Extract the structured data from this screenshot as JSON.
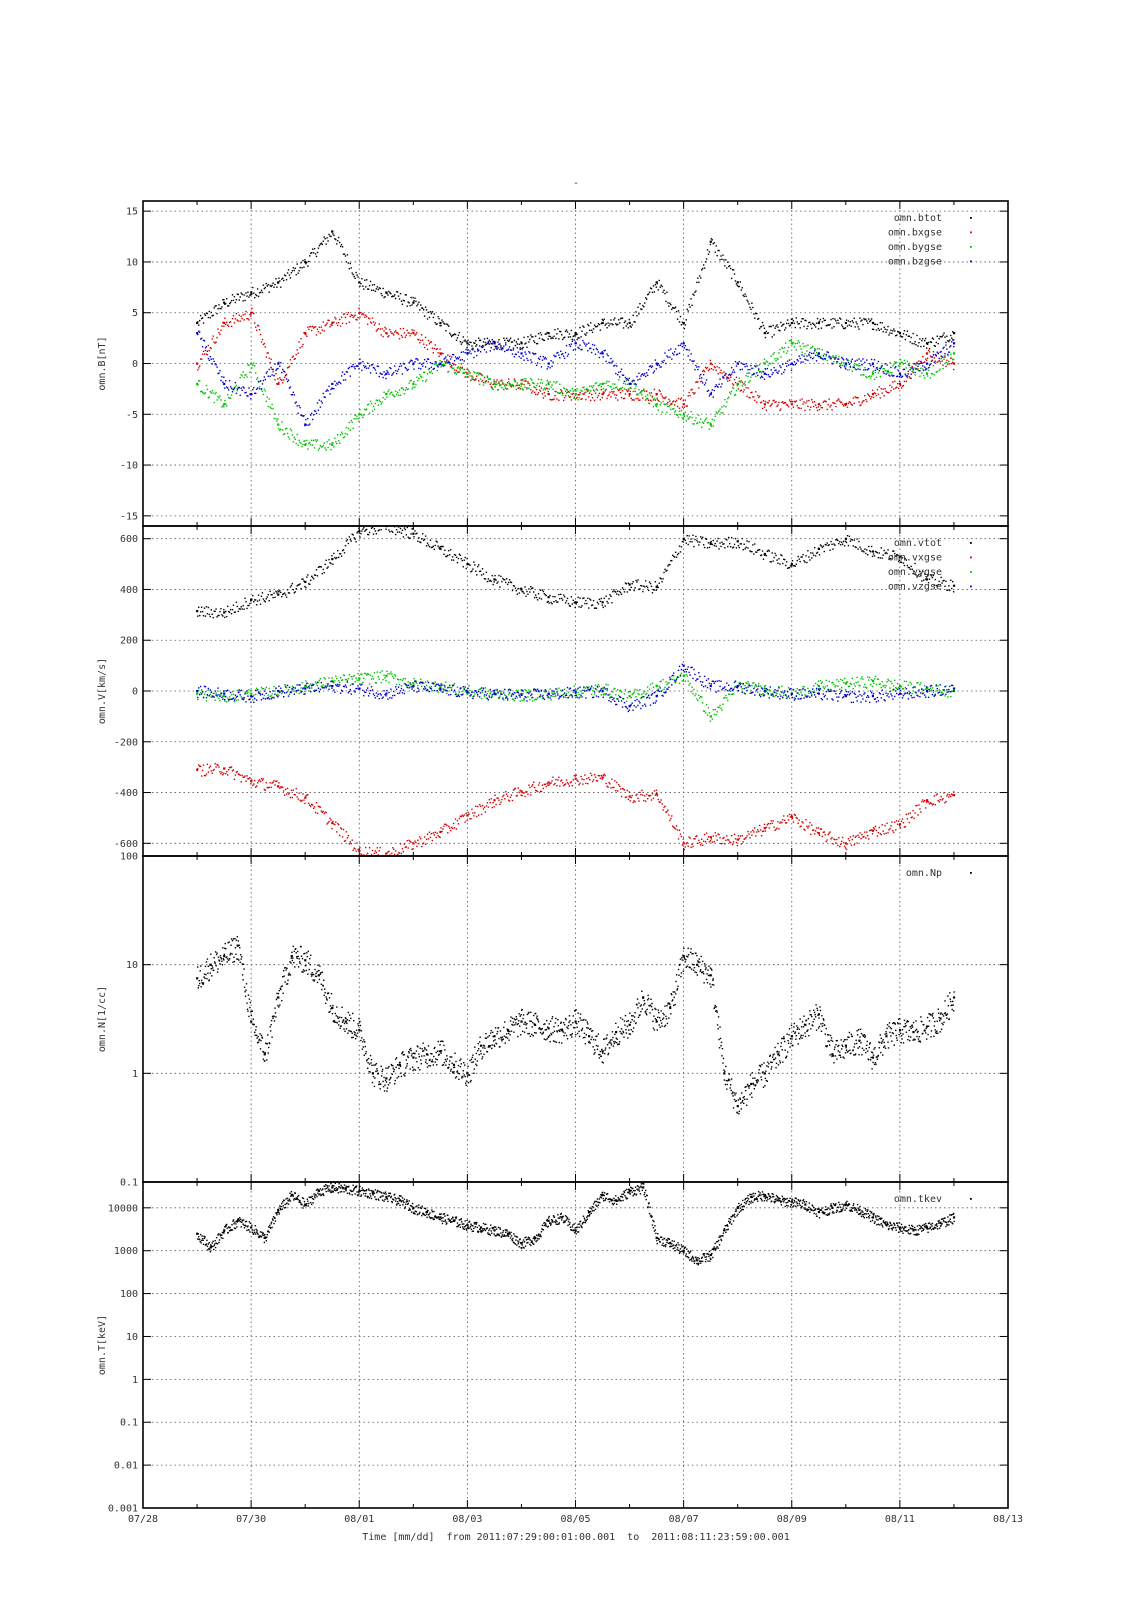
{
  "figure": {
    "title": "-",
    "xlabel": "Time [mm/dd]  from 2011:07:29:00:01:00.001  to  2011:08:11:23:59:00.001",
    "x_tick_labels": [
      "07/28",
      "07/30",
      "08/01",
      "08/03",
      "08/05",
      "08/07",
      "08/09",
      "08/11",
      "08/13"
    ]
  },
  "chart_data": [
    {
      "id": "b",
      "type": "scatter",
      "ylabel": "omn.B[nT]",
      "yscale": "linear",
      "ylim": [
        -16,
        16
      ],
      "yticks": [
        -15,
        -10,
        -5,
        0,
        5,
        10,
        15
      ],
      "xlim": [
        0,
        16
      ],
      "x_units": "days since 07/28",
      "grid": true,
      "legend": "top-right",
      "series": [
        {
          "name": "omn.btot",
          "color": "#000000",
          "x": [
            1.0,
            1.5,
            2.0,
            2.5,
            3.0,
            3.5,
            4.0,
            4.5,
            5.0,
            5.5,
            6.0,
            6.5,
            7.0,
            7.5,
            8.0,
            8.5,
            9.0,
            9.5,
            10.0,
            10.5,
            11.0,
            11.5,
            12.0,
            12.5,
            13.0,
            13.5,
            14.0,
            14.5,
            15.0
          ],
          "y": [
            4,
            6,
            7,
            8,
            10,
            13,
            8,
            7,
            6,
            4,
            2,
            2,
            2,
            3,
            3,
            4,
            4,
            8,
            4,
            12,
            8,
            3,
            4,
            4,
            4,
            4,
            3,
            2,
            3
          ]
        },
        {
          "name": "omn.bxgse",
          "color": "#d40000",
          "x": [
            1.0,
            1.5,
            2.0,
            2.5,
            3.0,
            3.5,
            4.0,
            4.5,
            5.0,
            5.5,
            6.0,
            6.5,
            7.0,
            7.5,
            8.0,
            8.5,
            9.0,
            9.5,
            10.0,
            10.5,
            11.0,
            11.5,
            12.0,
            12.5,
            13.0,
            13.5,
            14.0,
            14.5,
            15.0
          ],
          "y": [
            0,
            4,
            5,
            -2,
            3,
            4,
            5,
            3,
            3,
            1,
            -1,
            -2,
            -2,
            -3,
            -3,
            -3,
            -3,
            -3,
            -4,
            0,
            -2,
            -4,
            -4,
            -4,
            -4,
            -3,
            -2,
            1,
            0
          ]
        },
        {
          "name": "omn.bygse",
          "color": "#00c000",
          "x": [
            1.0,
            1.5,
            2.0,
            2.5,
            3.0,
            3.5,
            4.0,
            4.5,
            5.0,
            5.5,
            6.0,
            6.5,
            7.0,
            7.5,
            8.0,
            8.5,
            9.0,
            9.5,
            10.0,
            10.5,
            11.0,
            11.5,
            12.0,
            12.5,
            13.0,
            13.5,
            14.0,
            14.5,
            15.0
          ],
          "y": [
            -2,
            -4,
            0,
            -6,
            -8,
            -8,
            -5,
            -3,
            -2,
            0,
            -1,
            -2,
            -2,
            -2,
            -3,
            -2,
            -2,
            -4,
            -5,
            -6,
            -2,
            0,
            2,
            1,
            0,
            -1,
            0,
            -1,
            1
          ]
        },
        {
          "name": "omn.bzgse",
          "color": "#0000c8",
          "x": [
            1.0,
            1.5,
            2.0,
            2.5,
            3.0,
            3.5,
            4.0,
            4.5,
            5.0,
            5.5,
            6.0,
            6.5,
            7.0,
            7.5,
            8.0,
            8.5,
            9.0,
            9.5,
            10.0,
            10.5,
            11.0,
            11.5,
            12.0,
            12.5,
            13.0,
            13.5,
            14.0,
            14.5,
            15.0
          ],
          "y": [
            3,
            -2,
            -3,
            0,
            -6,
            -2,
            0,
            -1,
            0,
            0,
            1,
            2,
            1,
            0,
            2,
            1,
            -2,
            0,
            2,
            -3,
            0,
            -1,
            0,
            1,
            0,
            0,
            -1,
            0,
            2
          ]
        }
      ]
    },
    {
      "id": "v",
      "type": "scatter",
      "ylabel": "omn.V[km/s]",
      "yscale": "linear",
      "ylim": [
        -650,
        650
      ],
      "yticks": [
        -600,
        -400,
        -200,
        0,
        200,
        400,
        600
      ],
      "xlim": [
        0,
        16
      ],
      "x_units": "days since 07/28",
      "grid": true,
      "legend": "top-right",
      "series": [
        {
          "name": "omn.vtot",
          "color": "#000000",
          "x": [
            1.0,
            1.5,
            2.0,
            2.5,
            3.0,
            3.5,
            4.0,
            4.5,
            5.0,
            5.5,
            6.0,
            6.5,
            7.0,
            7.5,
            8.0,
            8.5,
            9.0,
            9.5,
            10.0,
            10.5,
            11.0,
            11.5,
            12.0,
            12.5,
            13.0,
            13.5,
            14.0,
            14.5,
            15.0
          ],
          "y": [
            315,
            310,
            360,
            380,
            430,
            520,
            630,
            650,
            620,
            560,
            500,
            440,
            400,
            370,
            350,
            350,
            420,
            410,
            600,
            580,
            590,
            540,
            500,
            560,
            600,
            550,
            530,
            440,
            415
          ]
        },
        {
          "name": "omn.vxgse",
          "color": "#d40000",
          "x": [
            1.0,
            1.5,
            2.0,
            2.5,
            3.0,
            3.5,
            4.0,
            4.5,
            5.0,
            5.5,
            6.0,
            6.5,
            7.0,
            7.5,
            8.0,
            8.5,
            9.0,
            9.5,
            10.0,
            10.5,
            11.0,
            11.5,
            12.0,
            12.5,
            13.0,
            13.5,
            14.0,
            14.5,
            15.0
          ],
          "y": [
            -310,
            -305,
            -355,
            -375,
            -420,
            -520,
            -630,
            -640,
            -600,
            -555,
            -490,
            -430,
            -395,
            -360,
            -345,
            -340,
            -415,
            -405,
            -600,
            -575,
            -585,
            -540,
            -495,
            -560,
            -600,
            -550,
            -525,
            -430,
            -410
          ]
        },
        {
          "name": "omn.vygse",
          "color": "#00c000",
          "x": [
            1.0,
            1.5,
            2.0,
            2.5,
            3.0,
            3.5,
            4.0,
            4.5,
            5.0,
            5.5,
            6.0,
            6.5,
            7.0,
            7.5,
            8.0,
            8.5,
            9.0,
            9.5,
            10.0,
            10.5,
            11.0,
            11.5,
            12.0,
            12.5,
            13.0,
            13.5,
            14.0,
            14.5,
            15.0
          ],
          "y": [
            -10,
            -20,
            -10,
            0,
            20,
            40,
            50,
            60,
            30,
            20,
            0,
            -10,
            -15,
            -10,
            0,
            10,
            -20,
            20,
            60,
            -100,
            20,
            10,
            -10,
            20,
            30,
            40,
            20,
            10,
            0
          ]
        },
        {
          "name": "omn.vzgse",
          "color": "#0000c8",
          "x": [
            1.0,
            1.5,
            2.0,
            2.5,
            3.0,
            3.5,
            4.0,
            4.5,
            5.0,
            5.5,
            6.0,
            6.5,
            7.0,
            7.5,
            8.0,
            8.5,
            9.0,
            9.5,
            10.0,
            10.5,
            11.0,
            11.5,
            12.0,
            12.5,
            13.0,
            13.5,
            14.0,
            14.5,
            15.0
          ],
          "y": [
            0,
            -10,
            -20,
            0,
            10,
            20,
            10,
            -10,
            20,
            10,
            -5,
            -10,
            -15,
            -10,
            -5,
            0,
            -60,
            -20,
            100,
            20,
            20,
            0,
            -10,
            -10,
            -20,
            -20,
            -10,
            0,
            10
          ]
        }
      ]
    },
    {
      "id": "n",
      "type": "scatter",
      "ylabel": "omn.N[1/cc]",
      "yscale": "log",
      "ylim": [
        0.1,
        100
      ],
      "yticks": [
        0.1,
        1,
        10,
        100
      ],
      "ytick_labels": [
        "0.1",
        "1",
        "10",
        "100"
      ],
      "xlim": [
        0,
        16
      ],
      "x_units": "days since 07/28",
      "grid": true,
      "legend": "top-right",
      "series": [
        {
          "name": "omn.Np",
          "color": "#000000",
          "x": [
            1.0,
            1.25,
            1.5,
            1.75,
            2.0,
            2.25,
            2.5,
            2.75,
            3.0,
            3.25,
            3.5,
            3.75,
            4.0,
            4.25,
            4.5,
            4.75,
            5.0,
            5.25,
            5.5,
            5.75,
            6.0,
            6.25,
            6.5,
            6.75,
            7.0,
            7.25,
            7.5,
            7.75,
            8.0,
            8.25,
            8.5,
            8.75,
            9.0,
            9.25,
            9.5,
            9.75,
            10.0,
            10.25,
            10.5,
            10.75,
            11.0,
            11.25,
            11.5,
            11.75,
            12.0,
            12.25,
            12.5,
            12.75,
            13.0,
            13.25,
            13.5,
            13.75,
            14.0,
            14.25,
            14.5,
            14.75,
            15.0
          ],
          "y": [
            7.5,
            10,
            12,
            15,
            3,
            1.5,
            5,
            12,
            11,
            8,
            4,
            3,
            2.5,
            1,
            0.9,
            1.2,
            1.4,
            1.5,
            1.6,
            1.2,
            1.0,
            1.8,
            2.2,
            2.5,
            3,
            2.8,
            2.6,
            2.5,
            3,
            2.2,
            1.6,
            2.4,
            2.8,
            5,
            3,
            4,
            12,
            10,
            8,
            1.0,
            0.5,
            0.8,
            1.0,
            1.5,
            2.2,
            2.8,
            3.5,
            1.5,
            1.8,
            2.0,
            1.4,
            2.2,
            2.5,
            2.4,
            2.7,
            3.2,
            5
          ]
        }
      ]
    },
    {
      "id": "t",
      "type": "scatter",
      "ylabel": "omn.T[keV]",
      "yscale": "log",
      "ylim": [
        0.001,
        40000
      ],
      "yticks": [
        0.001,
        0.01,
        0.1,
        1,
        10,
        100,
        1000,
        10000
      ],
      "ytick_labels": [
        "0.001",
        "0.01",
        "0.1",
        "1",
        "10",
        "100",
        "1000",
        "10000"
      ],
      "xlim": [
        0,
        16
      ],
      "x_units": "days since 07/28",
      "grid": true,
      "legend": "top-right",
      "series": [
        {
          "name": "omn.tkev",
          "color": "#000000",
          "x": [
            1.0,
            1.25,
            1.5,
            1.75,
            2.0,
            2.25,
            2.5,
            2.75,
            3.0,
            3.25,
            3.5,
            3.75,
            4.0,
            4.25,
            4.5,
            4.75,
            5.0,
            5.25,
            5.5,
            5.75,
            6.0,
            6.25,
            6.5,
            6.75,
            7.0,
            7.25,
            7.5,
            7.75,
            8.0,
            8.25,
            8.5,
            8.75,
            9.0,
            9.25,
            9.5,
            9.75,
            10.0,
            10.25,
            10.5,
            10.75,
            11.0,
            11.25,
            11.5,
            11.75,
            12.0,
            12.25,
            12.5,
            12.75,
            13.0,
            13.25,
            13.5,
            13.75,
            14.0,
            14.25,
            14.5,
            14.75,
            15.0
          ],
          "y": [
            2500,
            1200,
            3000,
            5000,
            3500,
            2000,
            9000,
            20000,
            12000,
            25000,
            30000,
            28000,
            25000,
            22000,
            18000,
            15000,
            10000,
            8000,
            6000,
            5000,
            4000,
            3500,
            3000,
            2500,
            1500,
            2000,
            5000,
            6000,
            3000,
            8000,
            20000,
            15000,
            25000,
            30000,
            2000,
            1500,
            1000,
            600,
            800,
            3000,
            10000,
            18000,
            20000,
            15000,
            14000,
            12000,
            8000,
            10000,
            12000,
            9000,
            6000,
            4000,
            3500,
            3000,
            3500,
            4500,
            6000
          ]
        }
      ]
    }
  ]
}
